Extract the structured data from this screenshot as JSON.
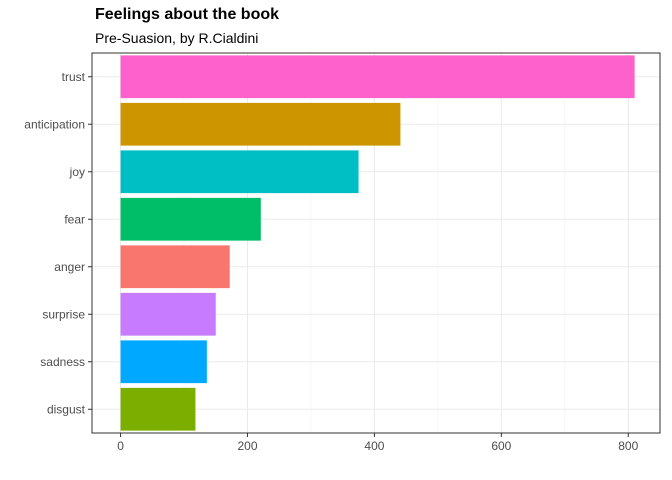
{
  "chart_data": {
    "type": "bar",
    "orientation": "horizontal",
    "title": "Feelings about the book",
    "subtitle": "Pre-Suasion, by R.Cialdini",
    "xlabel": "",
    "ylabel": "",
    "xlim": [
      -45,
      850
    ],
    "x_ticks": [
      0,
      200,
      400,
      600,
      800
    ],
    "grid": true,
    "legend": "none",
    "categories": [
      "trust",
      "anticipation",
      "joy",
      "fear",
      "anger",
      "surprise",
      "sadness",
      "disgust"
    ],
    "values": [
      810,
      441,
      375,
      221,
      172,
      150,
      136,
      118
    ],
    "colors": [
      "#FF61CC",
      "#CD9600",
      "#00BFC4",
      "#00BE67",
      "#F8766D",
      "#C77CFF",
      "#00A9FF",
      "#7CAE00"
    ]
  }
}
